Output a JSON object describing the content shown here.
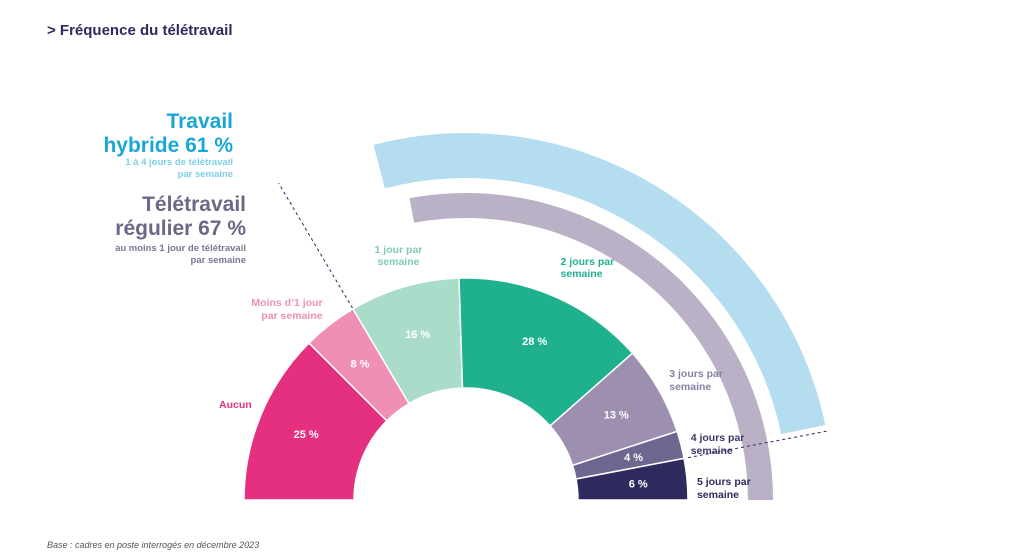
{
  "title": "> Fréquence du télétravail",
  "footnote": "Base : cadres en poste interrogés en décembre 2023",
  "highlights": {
    "hybrid": {
      "title": "Travail\nhybride 61 %",
      "subtitle": "1 à 4 jours de télétravail\npar semaine",
      "color": "#b5ddf0"
    },
    "regular": {
      "title": "Télétravail\nrégulier 67 %",
      "subtitle": "au moins 1 jour de télétravail\npar semaine",
      "color": "#bbb1c7"
    }
  },
  "chart_data": {
    "type": "pie",
    "shape": "half-donut",
    "title": "> Fréquence du télétravail",
    "categories": [
      "Aucun",
      "Moins d'1 jour par semaine",
      "1 jour par semaine",
      "2 jours par semaine",
      "3 jours par semaine",
      "4 jours par semaine",
      "5 jours par semaine"
    ],
    "category_labels": [
      "Aucun",
      "Moins d’1 jour\npar semaine",
      "1 jour par\nsemaine",
      "2 jours par\nsemaine",
      "3 jours par\nsemaine",
      "4 jours par\nsemaine",
      "5 jours par\nsemaine"
    ],
    "values": [
      25,
      8,
      16,
      28,
      13,
      4,
      6
    ],
    "value_labels": [
      "25 %",
      "8 %",
      "16 %",
      "28 %",
      "13 %",
      "4 %",
      "6 %"
    ],
    "colors": [
      "#e4307f",
      "#f08fb5",
      "#a9dcc9",
      "#1fb08d",
      "#9c8fb0",
      "#6f6690",
      "#2e2a5e"
    ],
    "label_colors": [
      "#e4307f",
      "#f08fb5",
      "#7fcbb2",
      "#1fb08d",
      "#8a7fa4",
      "#3a3566",
      "#2e2a5e"
    ]
  }
}
